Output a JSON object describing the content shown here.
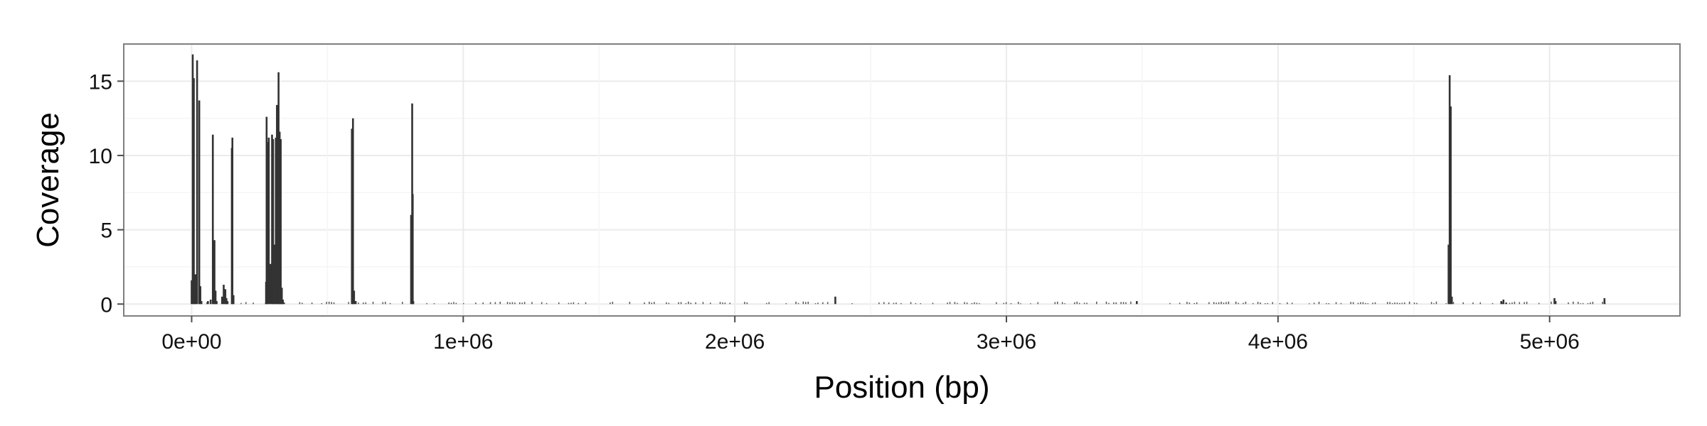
{
  "chart_data": {
    "type": "bar",
    "title": "",
    "xlabel": "Position (bp)",
    "ylabel": "Coverage",
    "xlim": [
      -250000,
      5480000
    ],
    "ylim": [
      -0.8,
      17.5
    ],
    "x_ticks": [
      0,
      1000000,
      2000000,
      3000000,
      4000000,
      5000000
    ],
    "x_tick_labels": [
      "0e+00",
      "1e+06",
      "2e+06",
      "3e+06",
      "4e+06",
      "5e+06"
    ],
    "y_ticks": [
      0,
      5,
      10,
      15
    ],
    "y_tick_labels": [
      "0",
      "5",
      "10",
      "15"
    ],
    "grid": true,
    "bar_color": "#333333",
    "panel_border_color": "#7f7f7f",
    "gridline_color": "#ebebeb",
    "series": [
      {
        "x": [
          0,
          4000,
          8000,
          14000,
          20000,
          28000,
          32000,
          36000,
          60000,
          70000,
          78000,
          84000,
          88000,
          92000,
          112000,
          118000,
          124000,
          128000,
          132000,
          148000,
          150000,
          154000,
          274000,
          276000,
          280000,
          284000,
          290000,
          296000,
          300000,
          304000,
          310000,
          314000,
          318000,
          320000,
          324000,
          328000,
          332000,
          336000,
          340000,
          590000,
          594000,
          598000,
          604000,
          808000,
          812000,
          814000,
          816000,
          2370000,
          3480000,
          4628000,
          4632000,
          4636000,
          4640000,
          4822000,
          4830000,
          4840000,
          5018000,
          5022000,
          5202000
        ],
        "y": [
          1.6,
          16.8,
          15.2,
          2.0,
          16.4,
          13.7,
          1.2,
          0.2,
          0.2,
          0.3,
          11.4,
          4.3,
          0.9,
          0.2,
          0.5,
          1.3,
          1.0,
          0.4,
          0.2,
          10.5,
          11.2,
          0.6,
          1.5,
          12.6,
          10.9,
          11.2,
          2.7,
          11.4,
          11.1,
          4.0,
          11.2,
          13.4,
          11.1,
          15.6,
          11.6,
          11.1,
          1.1,
          0.3,
          0.1,
          11.8,
          12.5,
          0.9,
          0.2,
          6.0,
          13.5,
          7.4,
          0.2,
          0.5,
          0.2,
          4.0,
          15.4,
          13.3,
          0.5,
          0.2,
          0.3,
          0.1,
          0.4,
          0.2,
          0.4
        ]
      }
    ]
  }
}
